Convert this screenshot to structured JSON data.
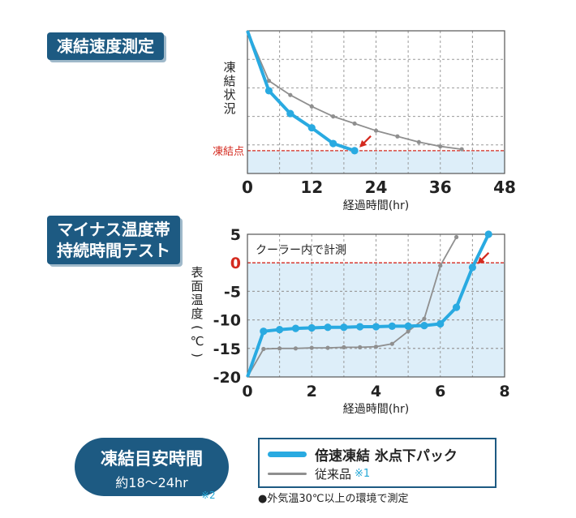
{
  "labels": {
    "freeze_speed": "凍結速度測定",
    "minus_line1": "マイナス温度帯",
    "minus_line2": "持続時間テスト",
    "pill_title": "凍結目安時間",
    "pill_sub": "約18〜24hr",
    "pill_note": "※2",
    "legend_blue": "倍速凍結 氷点下パック",
    "legend_gray": "従来品",
    "legend_gray_note": "※1",
    "footnote": "●外気温30℃以上の環境で測定"
  },
  "colors": {
    "blue_series": "#29aae1",
    "gray_series": "#8f8f8f",
    "freeze_line": "#d42a1f",
    "shade": "#ddeef9",
    "tag_bg": "#1d5a82"
  },
  "chart_data": [
    {
      "type": "line",
      "xlabel": "経過時間(hr)",
      "ylabel": "凍結状況",
      "xlim": [
        0,
        48
      ],
      "x_ticks": [
        0,
        12,
        24,
        36,
        48
      ],
      "ylim": [
        0,
        5
      ],
      "y_ticks_hidden": true,
      "grid": true,
      "reference_line": {
        "label": "凍結点",
        "y": 0.8,
        "style": "dashed",
        "color": "#d42a1f"
      },
      "shaded_below_reference": true,
      "series": [
        {
          "name": "倍速凍結 氷点下パック",
          "x": [
            0,
            4,
            8,
            12,
            16,
            20
          ],
          "y": [
            5.0,
            2.9,
            2.1,
            1.6,
            1.05,
            0.8
          ]
        },
        {
          "name": "従来品",
          "x": [
            0,
            4,
            8,
            12,
            16,
            20,
            24,
            28,
            32,
            36,
            40
          ],
          "y": [
            5.0,
            3.25,
            2.75,
            2.35,
            2.0,
            1.75,
            1.5,
            1.3,
            1.1,
            0.95,
            0.85
          ]
        }
      ]
    },
    {
      "type": "line",
      "xlabel": "経過時間(hr)",
      "ylabel": "表面温度(℃)",
      "annotation": "クーラー内で計測",
      "xlim": [
        0,
        8
      ],
      "x_ticks": [
        0,
        2,
        4,
        6,
        8
      ],
      "ylim": [
        -20,
        5
      ],
      "y_ticks": [
        5,
        0,
        -5,
        -10,
        -15,
        -20
      ],
      "grid": true,
      "reference_line": {
        "y": 0,
        "style": "dashed",
        "color": "#d42a1f"
      },
      "shaded_below_reference": true,
      "series": [
        {
          "name": "倍速凍結 氷点下パック",
          "x": [
            0,
            0.5,
            1.0,
            1.5,
            2.0,
            2.5,
            3.0,
            3.5,
            4.0,
            4.5,
            5.0,
            5.5,
            6.0,
            6.5,
            7.0,
            7.5
          ],
          "y": [
            -20,
            -12.0,
            -11.7,
            -11.5,
            -11.4,
            -11.3,
            -11.3,
            -11.2,
            -11.2,
            -11.1,
            -11.1,
            -11.0,
            -10.7,
            -7.8,
            -0.8,
            5.0
          ]
        },
        {
          "name": "従来品",
          "x": [
            0,
            0.5,
            1.0,
            1.5,
            2.0,
            2.5,
            3.0,
            3.5,
            4.0,
            4.5,
            5.0,
            5.5,
            6.0,
            6.5
          ],
          "y": [
            -20,
            -15.1,
            -15.0,
            -15.0,
            -14.9,
            -14.9,
            -14.8,
            -14.8,
            -14.7,
            -14.2,
            -12.0,
            -9.8,
            -0.5,
            4.5
          ]
        }
      ]
    }
  ]
}
